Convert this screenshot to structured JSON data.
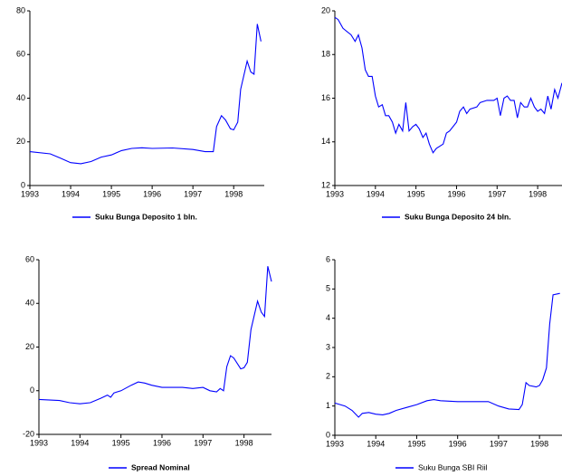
{
  "chart_data": [
    {
      "type": "line",
      "x": [
        1993.0,
        1993.5,
        1993.75,
        1994.0,
        1994.25,
        1994.5,
        1994.75,
        1995.0,
        1995.25,
        1995.5,
        1995.75,
        1996.0,
        1996.5,
        1997.0,
        1997.3,
        1997.5,
        1997.58,
        1997.7,
        1997.8,
        1997.92,
        1998.0,
        1998.1,
        1998.17,
        1998.33,
        1998.42,
        1998.5,
        1998.58,
        1998.67
      ],
      "series": [
        {
          "name": "Suku Bunga Deposito 1 bln.",
          "color": "#0000ff",
          "values": [
            15.5,
            14.5,
            12.5,
            10.5,
            10,
            11,
            13,
            14,
            16,
            17,
            17.3,
            17,
            17.2,
            16.5,
            15.5,
            15.5,
            27,
            32,
            30,
            26,
            25.5,
            29,
            44,
            57,
            52,
            51,
            74,
            66
          ]
        }
      ],
      "xlim": [
        1993,
        1998.75
      ],
      "xticks": [
        1993,
        1994,
        1995,
        1996,
        1997,
        1998
      ],
      "ylim": [
        0,
        80
      ],
      "yticks": [
        0,
        20,
        40,
        60,
        80
      ]
    },
    {
      "type": "line",
      "x": [
        1993.0,
        1993.08,
        1993.2,
        1993.4,
        1993.5,
        1993.58,
        1993.67,
        1993.75,
        1993.83,
        1993.92,
        1994.0,
        1994.08,
        1994.17,
        1994.25,
        1994.33,
        1994.42,
        1994.5,
        1994.58,
        1994.67,
        1994.75,
        1994.83,
        1994.92,
        1995.0,
        1995.08,
        1995.17,
        1995.25,
        1995.33,
        1995.42,
        1995.5,
        1995.67,
        1995.75,
        1995.83,
        1996.0,
        1996.08,
        1996.17,
        1996.25,
        1996.33,
        1996.5,
        1996.58,
        1996.75,
        1996.92,
        1997.0,
        1997.08,
        1997.17,
        1997.25,
        1997.33,
        1997.42,
        1997.5,
        1997.58,
        1997.67,
        1997.75,
        1997.83,
        1997.92,
        1998.0,
        1998.08,
        1998.17,
        1998.25,
        1998.33,
        1998.42,
        1998.5,
        1998.6
      ],
      "series": [
        {
          "name": "Suku Bunga Deposito 24 bln.",
          "color": "#0000ff",
          "values": [
            19.7,
            19.6,
            19.2,
            18.9,
            18.6,
            18.9,
            18.3,
            17.3,
            17.0,
            17.0,
            16.1,
            15.6,
            15.7,
            15.2,
            15.2,
            14.9,
            14.4,
            14.8,
            14.5,
            15.8,
            14.5,
            14.7,
            14.8,
            14.6,
            14.2,
            14.4,
            13.9,
            13.5,
            13.7,
            13.9,
            14.4,
            14.5,
            14.9,
            15.4,
            15.6,
            15.3,
            15.5,
            15.6,
            15.8,
            15.9,
            15.9,
            16.0,
            15.2,
            16.0,
            16.1,
            15.9,
            15.9,
            15.1,
            15.8,
            15.6,
            15.6,
            16.0,
            15.6,
            15.4,
            15.5,
            15.3,
            16.1,
            15.5,
            16.4,
            16.0,
            16.7
          ]
        }
      ],
      "xlim": [
        1993,
        1998.6
      ],
      "xticks": [
        1993,
        1994,
        1995,
        1996,
        1997,
        1998
      ],
      "ylim": [
        12,
        20
      ],
      "yticks": [
        12,
        14,
        16,
        18,
        20
      ]
    },
    {
      "type": "line",
      "x": [
        1993.0,
        1993.5,
        1993.75,
        1994.0,
        1994.25,
        1994.5,
        1994.67,
        1994.75,
        1994.83,
        1995.0,
        1995.25,
        1995.42,
        1995.58,
        1995.75,
        1996.0,
        1996.5,
        1996.75,
        1997.0,
        1997.17,
        1997.33,
        1997.42,
        1997.5,
        1997.58,
        1997.67,
        1997.75,
        1997.92,
        1998.0,
        1998.08,
        1998.17,
        1998.33,
        1998.42,
        1998.5,
        1998.58,
        1998.67
      ],
      "series": [
        {
          "name": "Spread Nominal",
          "color": "#0000ff",
          "values": [
            -4,
            -4.5,
            -5.5,
            -6,
            -5.5,
            -3.5,
            -2,
            -3,
            -1,
            0,
            2.5,
            4,
            3.5,
            2.5,
            1.5,
            1.5,
            1,
            1.5,
            0,
            -0.5,
            1,
            0,
            11,
            16,
            15,
            10,
            10.5,
            13,
            28,
            41,
            36,
            34,
            57,
            50
          ]
        }
      ],
      "xlim": [
        1993,
        1998.67
      ],
      "xticks": [
        1993,
        1994,
        1995,
        1996,
        1997,
        1998
      ],
      "ylim": [
        -20,
        60
      ],
      "yticks": [
        -20,
        0,
        20,
        40,
        60
      ]
    },
    {
      "type": "line",
      "x": [
        1993.0,
        1993.25,
        1993.42,
        1993.58,
        1993.67,
        1993.83,
        1994.0,
        1994.17,
        1994.33,
        1994.5,
        1994.75,
        1995.0,
        1995.25,
        1995.42,
        1995.58,
        1996.0,
        1996.5,
        1996.75,
        1997.0,
        1997.25,
        1997.5,
        1997.58,
        1997.67,
        1997.75,
        1997.92,
        1998.0,
        1998.08,
        1998.17,
        1998.25,
        1998.33,
        1998.5
      ],
      "series": [
        {
          "name": "Suku Bunga SBI Riil",
          "color": "#0000ff",
          "values": [
            1.1,
            1.0,
            0.85,
            0.62,
            0.75,
            0.78,
            0.72,
            0.7,
            0.75,
            0.85,
            0.95,
            1.05,
            1.18,
            1.22,
            1.18,
            1.15,
            1.15,
            1.15,
            1.0,
            0.9,
            0.88,
            1.05,
            1.8,
            1.7,
            1.65,
            1.7,
            1.9,
            2.3,
            3.8,
            4.8,
            4.85
          ]
        }
      ],
      "xlim": [
        1993,
        1998.55
      ],
      "xticks": [
        1993,
        1994,
        1995,
        1996,
        1997,
        1998
      ],
      "ylim": [
        0,
        6
      ],
      "yticks": [
        0,
        1,
        2,
        3,
        4,
        5,
        6
      ]
    }
  ]
}
